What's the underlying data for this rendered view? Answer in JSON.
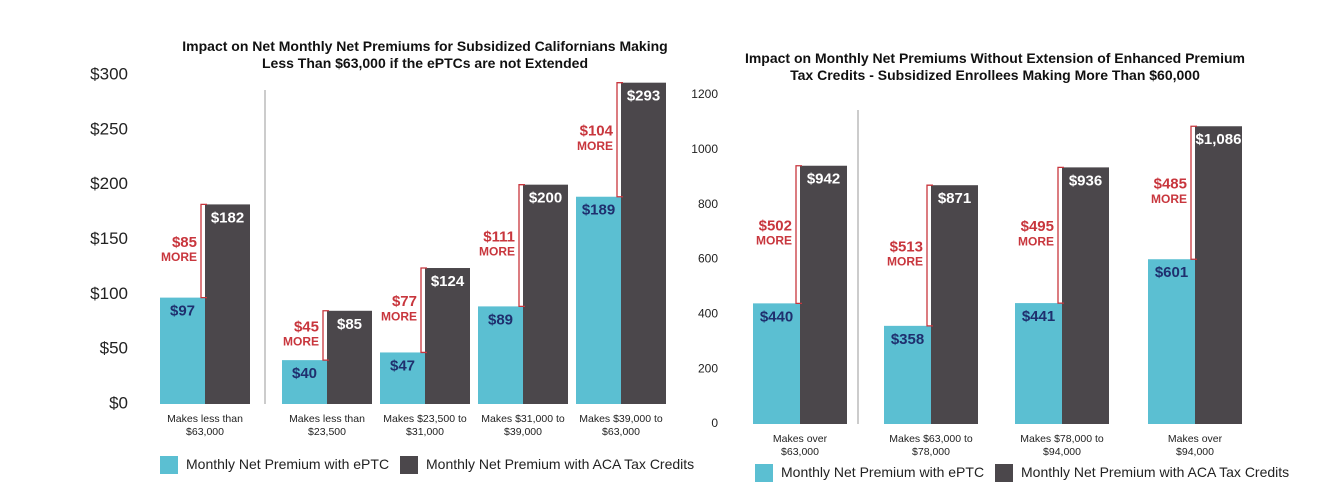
{
  "chart_data": [
    {
      "type": "bar",
      "title": "Impact on Net Monthly Net Premiums for Subsidized Californians Making Less Than $63,000 if the ePTCs are not Extended",
      "categories": [
        "Makes less than $63,000",
        "Makes less than $23,500",
        "Makes $23,500 to $31,000",
        "Makes $31,000 to $39,000",
        "Makes $39,000 to $63,000"
      ],
      "series": [
        {
          "name": "Monthly Net Premium with ePTC",
          "color": "#5bbfd2",
          "values": [
            97,
            40,
            47,
            89,
            189
          ],
          "value_labels": [
            "$97",
            "$40",
            "$47",
            "$89",
            "$189"
          ]
        },
        {
          "name": "Monthly Net Premium with ACA Tax Credits",
          "color": "#4b474b",
          "values": [
            182,
            85,
            124,
            200,
            293
          ],
          "value_labels": [
            "$182",
            "$85",
            "$124",
            "$200",
            "$293"
          ]
        }
      ],
      "annotations": {
        "values": [
          85,
          45,
          77,
          111,
          104
        ],
        "value_labels": [
          "$85",
          "$45",
          "$77",
          "$111",
          "$104"
        ],
        "text": "MORE",
        "color": "#c8363d"
      },
      "ylim": [
        0,
        300
      ],
      "yticks": [
        {
          "value": 0,
          "label": "$0"
        },
        {
          "value": 50,
          "label": "$50"
        },
        {
          "value": 100,
          "label": "$100"
        },
        {
          "value": 150,
          "label": "$150"
        },
        {
          "value": 200,
          "label": "$200"
        },
        {
          "value": 250,
          "label": "$250"
        },
        {
          "value": 300,
          "label": "$300"
        }
      ],
      "grid": false
    },
    {
      "type": "bar",
      "title": "Impact on Monthly Net Premiums Without Extension of Enhanced Premium Tax Credits - Subsidized Enrollees Making More Than $60,000",
      "categories": [
        "Makes over $63,000",
        "Makes $63,000 to $78,000",
        "Makes $78,000 to $94,000",
        "Makes over $94,000"
      ],
      "series": [
        {
          "name": "Monthly Net Premium with ePTC",
          "color": "#5bbfd2",
          "values": [
            440,
            358,
            441,
            601
          ],
          "value_labels": [
            "$440",
            "$358",
            "$441",
            "$601"
          ]
        },
        {
          "name": "Monthly Net Premium with ACA Tax Credits",
          "color": "#4b474b",
          "values": [
            942,
            871,
            936,
            1086
          ],
          "value_labels": [
            "$942",
            "$871",
            "$936",
            "$1,086"
          ]
        }
      ],
      "annotations": {
        "values": [
          502,
          513,
          495,
          485
        ],
        "value_labels": [
          "$502",
          "$513",
          "$495",
          "$485"
        ],
        "text": "MORE",
        "color": "#c8363d"
      },
      "ylim": [
        0,
        1200
      ],
      "yticks": [
        0,
        200,
        400,
        600,
        800,
        1000,
        1200
      ],
      "grid": false
    }
  ]
}
